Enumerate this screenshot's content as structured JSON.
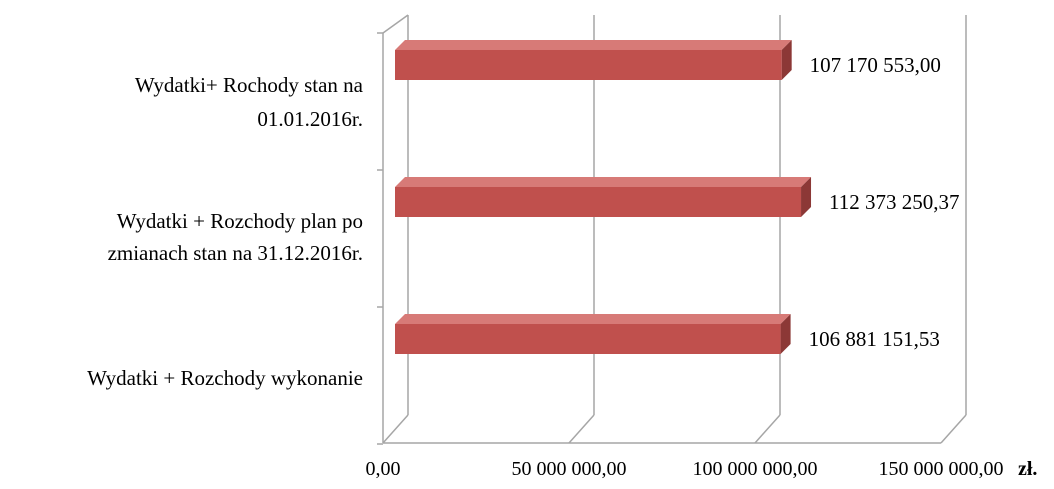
{
  "chart_data": {
    "type": "bar",
    "orientation": "horizontal",
    "style": "3d",
    "categories": [
      [
        "Wydatki+ Rochody stan na",
        "01.01.2016r."
      ],
      [
        "Wydatki + Rozchody plan po",
        "zmianach stan na 31.12.2016r."
      ],
      [
        "Wydatki + Rozchody wykonanie"
      ]
    ],
    "values": [
      107170553.0,
      112373250.37,
      106881151.53
    ],
    "data_labels": [
      "107 170 553,00",
      "112 373 250,37",
      "106 881 151,53"
    ],
    "x_ticks": [
      0,
      50000000,
      100000000,
      150000000
    ],
    "x_tick_labels": [
      "0,00",
      "50 000 000,00",
      "100 000 000,00",
      "150 000 000,00"
    ],
    "xlim": [
      0,
      150000000
    ],
    "x_unit": "zł.",
    "grid": true,
    "legend": "none",
    "colors": {
      "bar_front": "#c0504d",
      "bar_top": "#d77a77",
      "bar_side": "#8c3836",
      "grid": "#a6a6a6",
      "text": "#000000"
    }
  }
}
